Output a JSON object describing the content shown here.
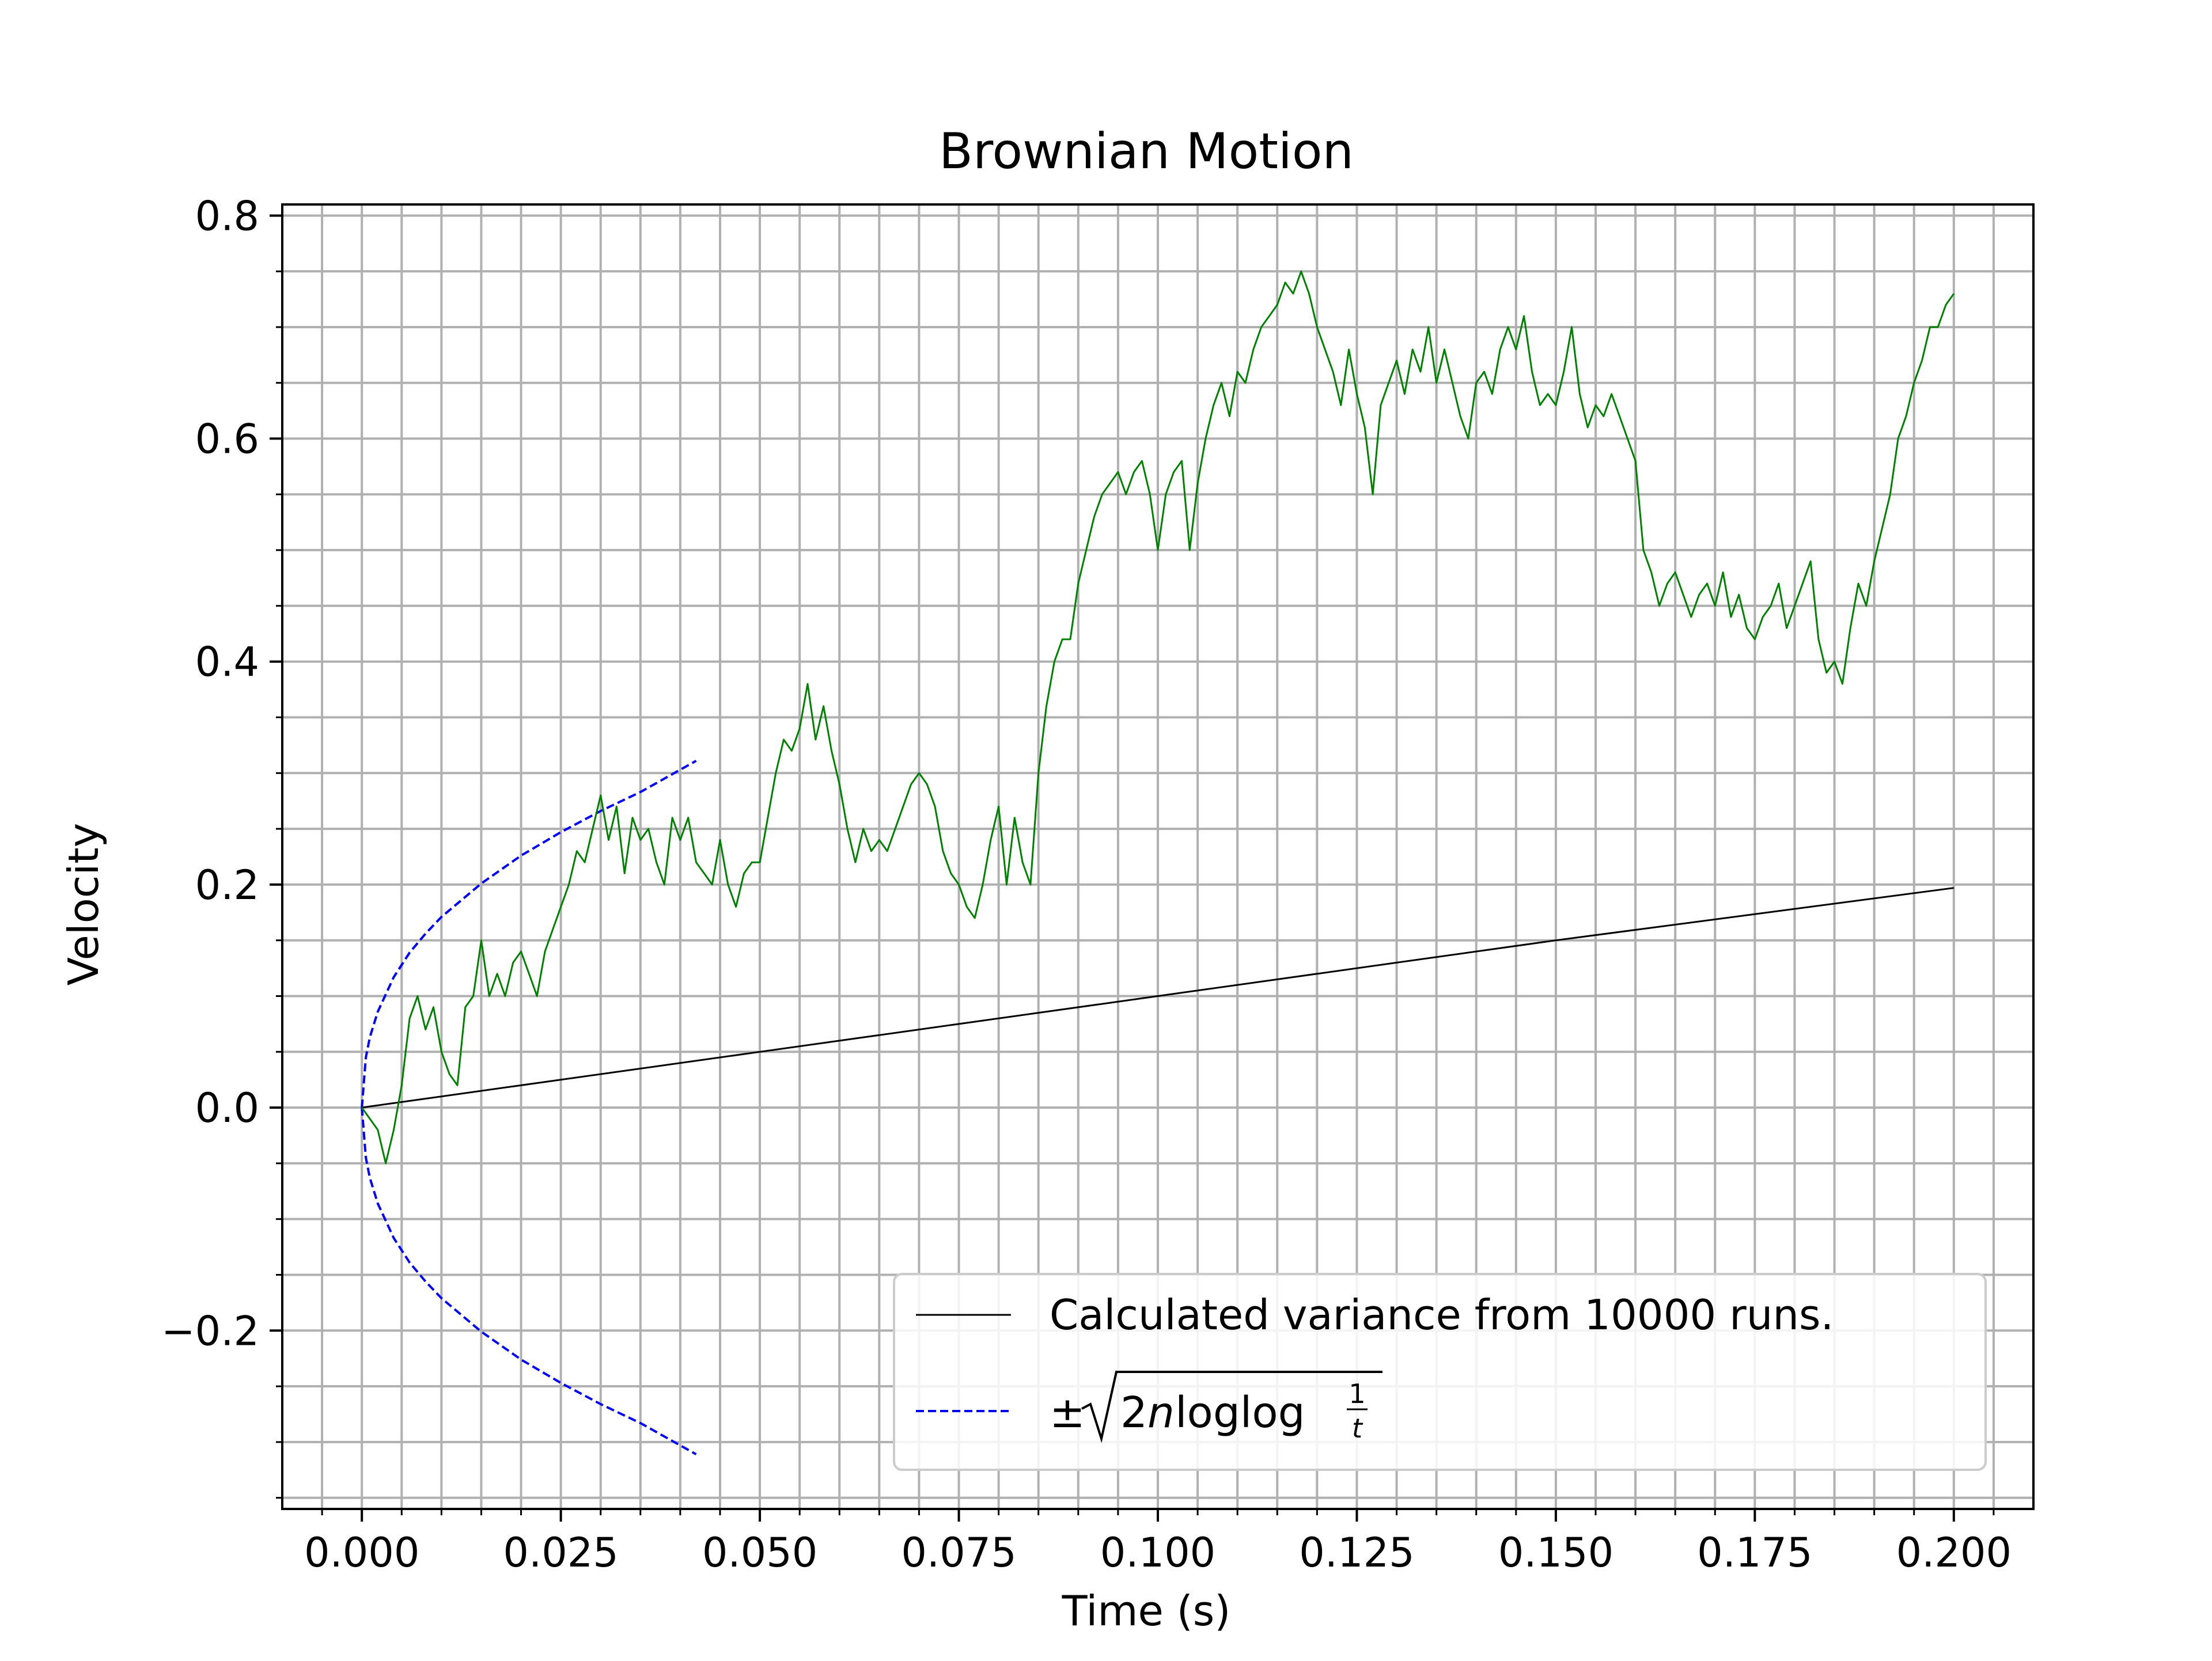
{
  "chart_data": {
    "type": "line",
    "title": "Brownian Motion",
    "xlabel": "Time (s)",
    "ylabel": "Velocity",
    "xlim": [
      -0.01,
      0.21
    ],
    "ylim": [
      -0.36,
      0.81
    ],
    "x_ticks": [
      0.0,
      0.025,
      0.05,
      0.075,
      0.1,
      0.125,
      0.15,
      0.175,
      0.2
    ],
    "x_tick_labels": [
      "0.000",
      "0.025",
      "0.050",
      "0.075",
      "0.100",
      "0.125",
      "0.150",
      "0.175",
      "0.200"
    ],
    "y_ticks": [
      -0.2,
      0.0,
      0.2,
      0.4,
      0.6,
      0.8
    ],
    "y_tick_labels": [
      "−0.2",
      "0.0",
      "0.2",
      "0.4",
      "0.6",
      "0.8"
    ],
    "grid": "on (major and minor)",
    "legend_position": "lower right",
    "colors": {
      "path": "#008000",
      "variance": "#000000",
      "bound": "#0000ff",
      "grid": "#b0b0b0"
    },
    "series": [
      {
        "name": "Calculated variance from 10000 runs.",
        "style": "solid",
        "x": [
          0.0,
          0.05,
          0.1,
          0.15,
          0.2
        ],
        "y": [
          0.0,
          0.05,
          0.1,
          0.15,
          0.197
        ]
      },
      {
        "name": "±√(2n loglog 1/t)",
        "style": "dashed",
        "note_formula": "y = ± sqrt(2 t loglog(1/t)) scaled",
        "x": [
          0.0,
          0.0005,
          0.001,
          0.002,
          0.004,
          0.006,
          0.008,
          0.01,
          0.015,
          0.02,
          0.025,
          0.03,
          0.035,
          0.042
        ],
        "y_upper": [
          0.0,
          0.045,
          0.063,
          0.086,
          0.117,
          0.139,
          0.156,
          0.171,
          0.201,
          0.226,
          0.247,
          0.266,
          0.283,
          0.311
        ],
        "y_lower": [
          0.0,
          -0.045,
          -0.063,
          -0.086,
          -0.117,
          -0.139,
          -0.156,
          -0.171,
          -0.201,
          -0.226,
          -0.247,
          -0.266,
          -0.283,
          -0.311
        ]
      },
      {
        "name": "",
        "style": "solid",
        "x": [
          0.0,
          0.002,
          0.003,
          0.004,
          0.005,
          0.006,
          0.007,
          0.008,
          0.009,
          0.01,
          0.011,
          0.012,
          0.013,
          0.014,
          0.015,
          0.016,
          0.017,
          0.018,
          0.019,
          0.02,
          0.021,
          0.022,
          0.023,
          0.024,
          0.025,
          0.026,
          0.027,
          0.028,
          0.029,
          0.03,
          0.031,
          0.032,
          0.033,
          0.034,
          0.035,
          0.036,
          0.037,
          0.038,
          0.039,
          0.04,
          0.041,
          0.042,
          0.043,
          0.044,
          0.045,
          0.046,
          0.047,
          0.048,
          0.049,
          0.05,
          0.051,
          0.052,
          0.053,
          0.054,
          0.055,
          0.056,
          0.057,
          0.058,
          0.059,
          0.06,
          0.061,
          0.062,
          0.063,
          0.064,
          0.065,
          0.066,
          0.067,
          0.068,
          0.069,
          0.07,
          0.071,
          0.072,
          0.073,
          0.074,
          0.075,
          0.076,
          0.077,
          0.078,
          0.079,
          0.08,
          0.081,
          0.082,
          0.083,
          0.084,
          0.085,
          0.086,
          0.087,
          0.088,
          0.089,
          0.09,
          0.091,
          0.092,
          0.093,
          0.094,
          0.095,
          0.096,
          0.097,
          0.098,
          0.099,
          0.1,
          0.101,
          0.102,
          0.103,
          0.104,
          0.105,
          0.106,
          0.107,
          0.108,
          0.109,
          0.11,
          0.111,
          0.112,
          0.113,
          0.114,
          0.115,
          0.116,
          0.117,
          0.118,
          0.119,
          0.12,
          0.121,
          0.122,
          0.123,
          0.124,
          0.125,
          0.126,
          0.127,
          0.128,
          0.129,
          0.13,
          0.131,
          0.132,
          0.133,
          0.134,
          0.135,
          0.136,
          0.137,
          0.138,
          0.139,
          0.14,
          0.141,
          0.142,
          0.143,
          0.144,
          0.145,
          0.146,
          0.147,
          0.148,
          0.149,
          0.15,
          0.151,
          0.152,
          0.153,
          0.154,
          0.155,
          0.156,
          0.157,
          0.158,
          0.159,
          0.16,
          0.161,
          0.162,
          0.163,
          0.164,
          0.165,
          0.166,
          0.167,
          0.168,
          0.169,
          0.17,
          0.171,
          0.172,
          0.173,
          0.174,
          0.175,
          0.176,
          0.177,
          0.178,
          0.179,
          0.18,
          0.181,
          0.182,
          0.183,
          0.184,
          0.185,
          0.186,
          0.187,
          0.188,
          0.189,
          0.19,
          0.191,
          0.192,
          0.193,
          0.194,
          0.195,
          0.196,
          0.197,
          0.198,
          0.199,
          0.2
        ],
        "y": [
          0.0,
          -0.02,
          -0.05,
          -0.02,
          0.02,
          0.08,
          0.1,
          0.07,
          0.09,
          0.05,
          0.03,
          0.02,
          0.09,
          0.1,
          0.15,
          0.1,
          0.12,
          0.1,
          0.13,
          0.14,
          0.12,
          0.1,
          0.14,
          0.16,
          0.18,
          0.2,
          0.23,
          0.22,
          0.25,
          0.28,
          0.24,
          0.27,
          0.21,
          0.26,
          0.24,
          0.25,
          0.22,
          0.2,
          0.26,
          0.24,
          0.26,
          0.22,
          0.21,
          0.2,
          0.24,
          0.2,
          0.18,
          0.21,
          0.22,
          0.22,
          0.26,
          0.3,
          0.33,
          0.32,
          0.34,
          0.38,
          0.33,
          0.36,
          0.32,
          0.29,
          0.25,
          0.22,
          0.25,
          0.23,
          0.24,
          0.23,
          0.25,
          0.27,
          0.29,
          0.3,
          0.29,
          0.27,
          0.23,
          0.21,
          0.2,
          0.18,
          0.17,
          0.2,
          0.24,
          0.27,
          0.2,
          0.26,
          0.22,
          0.2,
          0.3,
          0.36,
          0.4,
          0.42,
          0.42,
          0.47,
          0.5,
          0.53,
          0.55,
          0.56,
          0.57,
          0.55,
          0.57,
          0.58,
          0.55,
          0.5,
          0.55,
          0.57,
          0.58,
          0.5,
          0.56,
          0.6,
          0.63,
          0.65,
          0.62,
          0.66,
          0.65,
          0.68,
          0.7,
          0.71,
          0.72,
          0.74,
          0.73,
          0.75,
          0.73,
          0.7,
          0.68,
          0.66,
          0.63,
          0.68,
          0.64,
          0.61,
          0.55,
          0.63,
          0.65,
          0.67,
          0.64,
          0.68,
          0.66,
          0.7,
          0.65,
          0.68,
          0.65,
          0.62,
          0.6,
          0.65,
          0.66,
          0.64,
          0.68,
          0.7,
          0.68,
          0.71,
          0.66,
          0.63,
          0.64,
          0.63,
          0.66,
          0.7,
          0.64,
          0.61,
          0.63,
          0.62,
          0.64,
          0.62,
          0.6,
          0.58,
          0.5,
          0.48,
          0.45,
          0.47,
          0.48,
          0.46,
          0.44,
          0.46,
          0.47,
          0.45,
          0.48,
          0.44,
          0.46,
          0.43,
          0.42,
          0.44,
          0.45,
          0.47,
          0.43,
          0.45,
          0.47,
          0.49,
          0.42,
          0.39,
          0.4,
          0.38,
          0.43,
          0.47,
          0.45,
          0.49,
          0.52,
          0.55,
          0.6,
          0.62,
          0.65,
          0.67,
          0.7,
          0.7,
          0.72,
          0.73
        ]
      }
    ],
    "legend": [
      {
        "label": "Calculated variance from 10000 runs."
      },
      {
        "label_prefix": "±",
        "label_expr": "2",
        "label_var": "n",
        "label_func": "loglog",
        "label_frac_num": "1",
        "label_frac_den": "t"
      }
    ]
  }
}
